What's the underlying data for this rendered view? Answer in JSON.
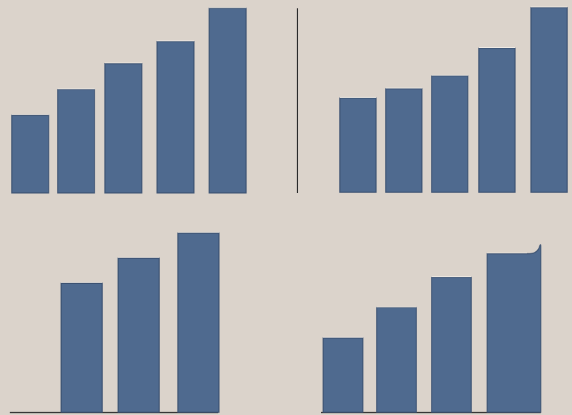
{
  "colors": {
    "background": "#dbd3cb",
    "bar_fill": "#4f6a8f",
    "bar_edge": "#3c5272",
    "bar_highlight": "#f1ece6",
    "axis": "#2a2a2a"
  },
  "chart_data": [
    {
      "type": "bar",
      "title": "",
      "categories": [
        "",
        "",
        "",
        "",
        ""
      ],
      "values": [
        42,
        56,
        70,
        82,
        100
      ],
      "ylim": [
        0,
        100
      ],
      "grid": false,
      "legend": "none"
    },
    {
      "type": "bar",
      "title": "",
      "categories": [
        "",
        "",
        "",
        "",
        ""
      ],
      "values": [
        51,
        56,
        63,
        78,
        100
      ],
      "ylim": [
        0,
        100
      ],
      "grid": false,
      "legend": "none"
    },
    {
      "type": "bar",
      "title": "",
      "categories": [
        "",
        "",
        ""
      ],
      "values": [
        72,
        86,
        100
      ],
      "ylim": [
        0,
        100
      ],
      "grid": false,
      "legend": "none"
    },
    {
      "type": "bar",
      "title": "",
      "categories": [
        "",
        "",
        "",
        ""
      ],
      "values": [
        44,
        62,
        80,
        94
      ],
      "ylim": [
        0,
        100
      ],
      "grid": false,
      "legend": "none"
    }
  ]
}
